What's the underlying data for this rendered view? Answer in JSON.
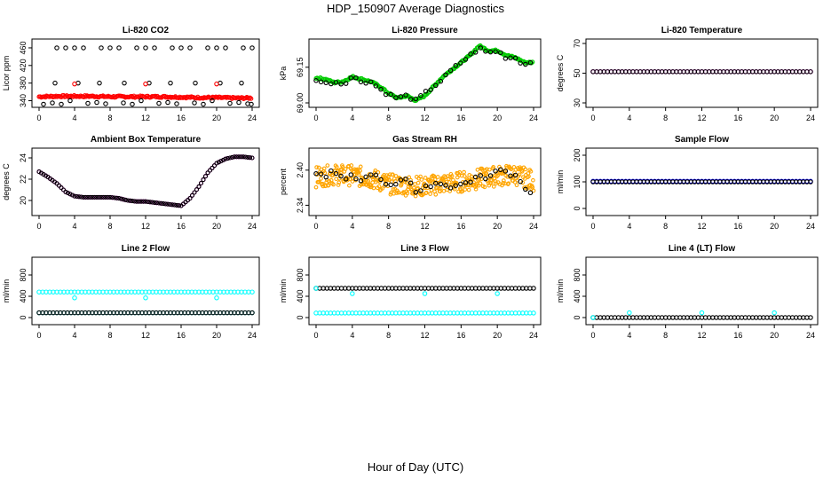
{
  "title": "HDP_150907  Average Diagnostics",
  "xlabel": "Hour of Day (UTC)",
  "colors": {
    "black": "#000000",
    "red": "#ff0000",
    "green": "#00cc00",
    "magenta": "#ff00ff",
    "orange": "#ffa500",
    "blue": "#0000ff",
    "cyan": "#00ffff"
  },
  "chart_data": [
    {
      "type": "scatter",
      "title": "Li-820 CO2",
      "ylabel": "Licor ppm",
      "xlim": [
        0,
        24
      ],
      "ylim": [
        335,
        470
      ],
      "xticks": [
        0,
        4,
        8,
        12,
        16,
        20,
        24
      ],
      "yticks": [
        340,
        380,
        420,
        460
      ],
      "ytick_labels": [
        "340",
        "380",
        "420",
        "460"
      ],
      "series": [
        {
          "color": "red",
          "mode": "band",
          "x": [
            0,
            2,
            4,
            6,
            8,
            10,
            12,
            14,
            16,
            18,
            20,
            22,
            24
          ],
          "values": [
            349,
            350,
            350,
            350,
            349,
            349,
            349,
            349,
            348,
            347,
            347,
            346,
            346
          ]
        },
        {
          "color": "black",
          "mode": "points",
          "x": [
            2,
            3,
            4,
            5,
            7,
            8,
            9,
            11,
            12,
            13,
            15,
            16,
            17,
            19,
            20,
            21,
            23,
            24,
            0.5,
            1.5,
            2.5,
            3.5,
            5.5,
            6.5,
            7.5,
            9.5,
            10.5,
            11.5,
            13.5,
            14.5,
            15.5,
            17.5,
            18.5,
            19.5,
            21.5,
            22.5,
            23.5,
            1.8,
            4.4,
            6.8,
            9.6,
            12.4,
            14.8,
            17.6,
            20.4,
            22.8,
            23.9
          ],
          "values": [
            460,
            460,
            460,
            460,
            460,
            460,
            460,
            460,
            460,
            460,
            460,
            460,
            460,
            460,
            460,
            460,
            460,
            460,
            332,
            335,
            332,
            340,
            334,
            336,
            333,
            335,
            332,
            340,
            334,
            336,
            333,
            335,
            332,
            340,
            334,
            336,
            333,
            380,
            380,
            380,
            380,
            380,
            380,
            380,
            380,
            380,
            332
          ]
        },
        {
          "color": "red",
          "mode": "points",
          "x": [
            4,
            12,
            20
          ],
          "values": [
            378,
            378,
            378
          ]
        }
      ]
    },
    {
      "type": "scatter",
      "title": "Li-820 Pressure",
      "ylabel": "kPa",
      "xlim": [
        0,
        24
      ],
      "ylim": [
        69.0,
        69.25
      ],
      "xticks": [
        0,
        4,
        8,
        12,
        16,
        20,
        24
      ],
      "yticks": [
        69.0,
        69.15
      ],
      "ytick_labels": [
        "69.00",
        "69.15"
      ],
      "series": [
        {
          "color": "green",
          "mode": "band",
          "x": [
            0,
            1,
            2,
            3,
            4,
            5,
            6,
            7,
            8,
            9,
            10,
            11,
            12,
            13,
            14,
            15,
            16,
            17,
            18,
            19,
            20,
            21,
            22,
            23,
            24
          ],
          "values": [
            69.105,
            69.1,
            69.085,
            69.09,
            69.11,
            69.1,
            69.09,
            69.07,
            69.04,
            69.02,
            69.03,
            69.01,
            69.03,
            69.07,
            69.11,
            69.14,
            69.17,
            69.2,
            69.24,
            69.22,
            69.22,
            69.2,
            69.19,
            69.17,
            69.17
          ]
        },
        {
          "color": "black",
          "mode": "scatter",
          "x": [
            0,
            1,
            2,
            3,
            4,
            5,
            6,
            7,
            8,
            9,
            10,
            11,
            12,
            13,
            14,
            15,
            16,
            17,
            18,
            19,
            20,
            21,
            22,
            23,
            24
          ],
          "values": [
            69.1,
            69.08,
            69.09,
            69.08,
            69.11,
            69.09,
            69.09,
            69.06,
            69.035,
            69.02,
            69.03,
            69.01,
            69.04,
            69.07,
            69.1,
            69.14,
            69.17,
            69.2,
            69.23,
            69.21,
            69.22,
            69.19,
            69.19,
            69.16,
            69.18
          ]
        }
      ]
    },
    {
      "type": "scatter",
      "title": "Li-820 Temperature",
      "ylabel": "degrees C",
      "xlim": [
        0,
        24
      ],
      "ylim": [
        30,
        70
      ],
      "xticks": [
        0,
        4,
        8,
        12,
        16,
        20,
        24
      ],
      "yticks": [
        30,
        50,
        70
      ],
      "ytick_labels": [
        "30",
        "50",
        "70"
      ],
      "series": [
        {
          "color": "magenta",
          "mode": "dense",
          "x": [
            0,
            24
          ],
          "values": [
            51,
            51
          ]
        },
        {
          "color": "black",
          "mode": "dense",
          "x": [
            0,
            24
          ],
          "values": [
            51,
            51
          ]
        }
      ]
    },
    {
      "type": "scatter",
      "title": "Ambient Box Temperature",
      "ylabel": "degrees C",
      "xlim": [
        0,
        24
      ],
      "ylim": [
        19,
        24.5
      ],
      "xticks": [
        0,
        4,
        8,
        12,
        16,
        20,
        24
      ],
      "yticks": [
        20,
        22,
        24
      ],
      "ytick_labels": [
        "20",
        "22",
        "24"
      ],
      "series": [
        {
          "color": "magenta",
          "mode": "curve",
          "x": [
            0,
            1,
            2,
            3,
            4,
            5,
            6,
            7,
            8,
            9,
            10,
            11,
            12,
            13,
            14,
            15,
            16,
            17,
            18,
            19,
            20,
            21,
            22,
            23,
            24
          ],
          "values": [
            22.7,
            22.2,
            21.6,
            20.8,
            20.4,
            20.3,
            20.3,
            20.3,
            20.3,
            20.2,
            20.0,
            19.9,
            19.9,
            19.8,
            19.7,
            19.6,
            19.5,
            20.2,
            21.3,
            22.6,
            23.5,
            23.9,
            24.1,
            24.1,
            24.0
          ]
        },
        {
          "color": "black",
          "mode": "curve",
          "x": [
            0,
            1,
            2,
            3,
            4,
            5,
            6,
            7,
            8,
            9,
            10,
            11,
            12,
            13,
            14,
            15,
            16,
            17,
            18,
            19,
            20,
            21,
            22,
            23,
            24
          ],
          "values": [
            22.7,
            22.2,
            21.6,
            20.8,
            20.4,
            20.3,
            20.3,
            20.3,
            20.3,
            20.2,
            20.0,
            19.9,
            19.9,
            19.8,
            19.7,
            19.6,
            19.5,
            20.2,
            21.3,
            22.6,
            23.5,
            23.9,
            24.1,
            24.1,
            24.0
          ]
        }
      ]
    },
    {
      "type": "scatter",
      "title": "Gas Stream RH",
      "ylabel": "percent",
      "xlim": [
        0,
        24
      ],
      "ylim": [
        2.33,
        2.43
      ],
      "xticks": [
        0,
        4,
        8,
        12,
        16,
        20,
        24
      ],
      "yticks": [
        2.34,
        2.4
      ],
      "ytick_labels": [
        "2.34",
        "2.40"
      ],
      "series": [
        {
          "color": "orange",
          "mode": "noise",
          "x": [
            0,
            2,
            4,
            6,
            8,
            10,
            12,
            14,
            16,
            18,
            20,
            22,
            24
          ],
          "values": [
            2.388,
            2.392,
            2.391,
            2.386,
            2.376,
            2.374,
            2.372,
            2.377,
            2.38,
            2.385,
            2.39,
            2.392,
            2.382
          ]
        },
        {
          "color": "black",
          "mode": "scatter",
          "x": [
            0,
            1,
            2,
            3,
            4,
            5,
            6,
            7,
            8,
            9,
            10,
            11,
            12,
            13,
            14,
            15,
            16,
            17,
            18,
            19,
            20,
            21,
            22,
            23,
            24
          ],
          "values": [
            2.395,
            2.39,
            2.4,
            2.385,
            2.39,
            2.38,
            2.392,
            2.388,
            2.37,
            2.378,
            2.385,
            2.365,
            2.37,
            2.375,
            2.38,
            2.37,
            2.375,
            2.38,
            2.39,
            2.385,
            2.4,
            2.395,
            2.39,
            2.37,
            2.36
          ]
        }
      ]
    },
    {
      "type": "scatter",
      "title": "Sample Flow",
      "ylabel": "ml/min",
      "xlim": [
        0,
        24
      ],
      "ylim": [
        -10,
        210
      ],
      "xticks": [
        0,
        4,
        8,
        12,
        16,
        20,
        24
      ],
      "yticks": [
        0,
        100,
        200
      ],
      "ytick_labels": [
        "0",
        "100",
        "200"
      ],
      "series": [
        {
          "color": "blue",
          "mode": "dense",
          "x": [
            0,
            24
          ],
          "values": [
            102,
            102
          ]
        },
        {
          "color": "black",
          "mode": "dense",
          "x": [
            0,
            24
          ],
          "values": [
            100,
            100
          ]
        }
      ]
    },
    {
      "type": "scatter",
      "title": "Line 2 Flow",
      "ylabel": "ml/min",
      "xlim": [
        0,
        24
      ],
      "ylim": [
        -50,
        1050
      ],
      "xticks": [
        0,
        4,
        8,
        12,
        16,
        20,
        24
      ],
      "yticks": [
        0,
        400,
        800
      ],
      "ytick_labels": [
        "0",
        "400",
        "800"
      ],
      "series": [
        {
          "color": "cyan",
          "mode": "dense",
          "x": [
            0,
            24
          ],
          "values": [
            480,
            480
          ]
        },
        {
          "color": "cyan",
          "mode": "points",
          "x": [
            4,
            12,
            20
          ],
          "values": [
            370,
            370,
            370
          ]
        },
        {
          "color": "cyan",
          "mode": "dense",
          "x": [
            0,
            24
          ],
          "values": [
            90,
            90
          ]
        },
        {
          "color": "black",
          "mode": "dense",
          "x": [
            0,
            24
          ],
          "values": [
            90,
            90
          ]
        }
      ]
    },
    {
      "type": "scatter",
      "title": "Line 3 Flow",
      "ylabel": "ml/min",
      "xlim": [
        0,
        24
      ],
      "ylim": [
        -50,
        1050
      ],
      "xticks": [
        0,
        4,
        8,
        12,
        16,
        20,
        24
      ],
      "yticks": [
        0,
        400,
        800
      ],
      "ytick_labels": [
        "0",
        "400",
        "800"
      ],
      "series": [
        {
          "color": "black",
          "mode": "dense",
          "x": [
            0,
            24
          ],
          "values": [
            550,
            550
          ]
        },
        {
          "color": "cyan",
          "mode": "points",
          "x": [
            0,
            4,
            12,
            20
          ],
          "values": [
            550,
            450,
            450,
            450
          ]
        },
        {
          "color": "cyan",
          "mode": "dense",
          "x": [
            0,
            24
          ],
          "values": [
            85,
            85
          ]
        }
      ]
    },
    {
      "type": "scatter",
      "title": "Line 4 (LT) Flow",
      "ylabel": "ml/min",
      "xlim": [
        0,
        24
      ],
      "ylim": [
        -50,
        1050
      ],
      "xticks": [
        0,
        4,
        8,
        12,
        16,
        20,
        24
      ],
      "yticks": [
        0,
        400,
        800
      ],
      "ytick_labels": [
        "0",
        "400",
        "800"
      ],
      "series": [
        {
          "color": "black",
          "mode": "dense",
          "x": [
            0,
            24
          ],
          "values": [
            0,
            0
          ]
        },
        {
          "color": "cyan",
          "mode": "points",
          "x": [
            0,
            4,
            12,
            20
          ],
          "values": [
            0,
            90,
            90,
            90
          ]
        }
      ]
    }
  ]
}
